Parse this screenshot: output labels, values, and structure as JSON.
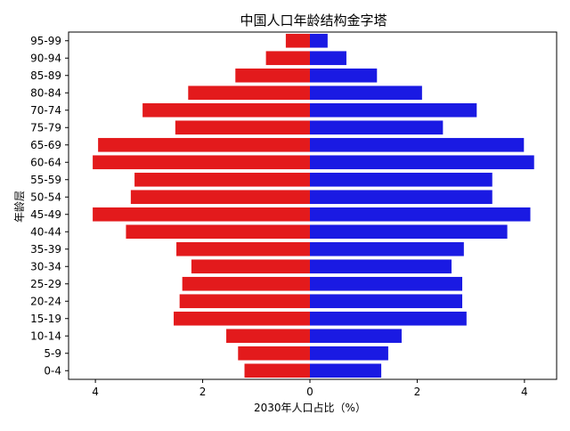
{
  "chart_data": {
    "type": "bar",
    "orientation": "horizontal",
    "title": "中国人口年龄结构金字塔",
    "xlabel": "2030年人口占比（%）",
    "ylabel": "年龄层",
    "categories": [
      "0-4",
      "5-9",
      "10-14",
      "15-19",
      "20-24",
      "25-29",
      "30-34",
      "35-39",
      "40-44",
      "45-49",
      "50-54",
      "55-59",
      "60-64",
      "65-69",
      "75-79",
      "70-74",
      "80-84",
      "85-89",
      "90-94",
      "95-99"
    ],
    "series": [
      {
        "color": "#e31a1c",
        "side": "left",
        "values": [
          1.22,
          1.34,
          1.56,
          2.54,
          2.43,
          2.38,
          2.21,
          2.49,
          3.43,
          4.05,
          3.34,
          3.27,
          4.05,
          3.95,
          2.51,
          3.12,
          2.27,
          1.39,
          0.82,
          0.45
        ]
      },
      {
        "color": "#1a1ae3",
        "side": "right",
        "values": [
          1.33,
          1.46,
          1.71,
          2.92,
          2.84,
          2.84,
          2.64,
          2.87,
          3.68,
          4.11,
          3.4,
          3.4,
          4.18,
          3.99,
          2.48,
          3.11,
          2.09,
          1.25,
          0.68,
          0.33
        ]
      }
    ],
    "xlim": [
      -4.5,
      4.6
    ],
    "xticks": [
      -4,
      -2,
      0,
      2,
      4
    ],
    "xtick_labels": [
      "4",
      "2",
      "0",
      "2",
      "4"
    ],
    "grid": false,
    "legend": "none"
  }
}
